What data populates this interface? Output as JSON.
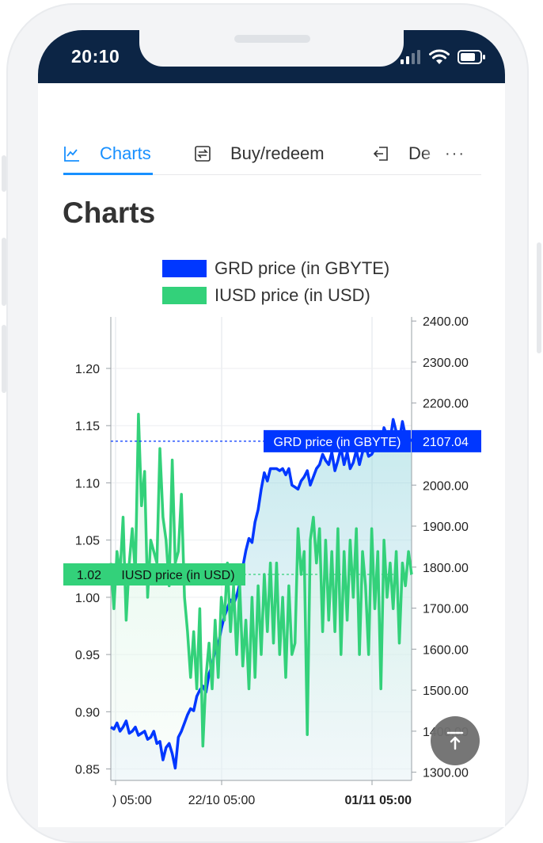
{
  "status_bar": {
    "time": "20:10"
  },
  "tabs": [
    {
      "label": "Charts",
      "active": true
    },
    {
      "label": "Buy/redeem",
      "active": false
    },
    {
      "label": "De",
      "active": false
    }
  ],
  "tabs_more": "···",
  "page_title": "Charts",
  "colors": {
    "grd": "#0037ff",
    "iusd": "#33d17a",
    "accent": "#1890ff",
    "statusbar": "#0c2545"
  },
  "chart_data": {
    "type": "line",
    "title": "",
    "series": [
      {
        "name": "GRD price (in GBYTE)",
        "axis": "right",
        "last_value_label": "2107.04",
        "values": [
          1410,
          1405,
          1420,
          1400,
          1410,
          1425,
          1395,
          1400,
          1410,
          1390,
          1395,
          1400,
          1380,
          1385,
          1400,
          1370,
          1375,
          1330,
          1360,
          1370,
          1345,
          1310,
          1385,
          1400,
          1420,
          1440,
          1455,
          1450,
          1485,
          1500,
          1510,
          1495,
          1540,
          1560,
          1600,
          1610,
          1650,
          1680,
          1700,
          1720,
          1710,
          1730,
          1760,
          1800,
          1840,
          1870,
          1860,
          1910,
          1940,
          1990,
          2030,
          2010,
          2040,
          2040,
          2040,
          2035,
          2040,
          2025,
          2040,
          2000,
          1995,
          1990,
          2010,
          2020,
          2035,
          2000,
          2020,
          2040,
          2050,
          2075,
          2060,
          2050,
          2080,
          2035,
          2060,
          2090,
          2050,
          2080,
          2040,
          2055,
          2085,
          2050,
          2080,
          2095,
          2070,
          2075,
          2090,
          2110,
          2095,
          2140,
          2120,
          2110,
          2160,
          2130,
          2110,
          2155,
          2120,
          2115,
          2107
        ]
      },
      {
        "name": "IUSD price (in USD)",
        "axis": "left",
        "last_value_label": "1.02",
        "values": [
          1.03,
          0.99,
          1.04,
          1.02,
          1.07,
          0.98,
          1.03,
          1.06,
          1.02,
          1.16,
          1.08,
          1.11,
          1.0,
          1.05,
          1.04,
          1.03,
          1.13,
          1.07,
          1.05,
          1.01,
          1.12,
          1.03,
          1.04,
          1.09,
          1.0,
          0.97,
          0.93,
          0.97,
          0.92,
          0.99,
          0.87,
          0.93,
          0.96,
          0.92,
          0.98,
          0.93,
          1.0,
          0.98,
          1.03,
          0.97,
          1.01,
          0.95,
          1.01,
          0.94,
          0.98,
          0.92,
          1.0,
          0.93,
          1.01,
          0.95,
          1.02,
          0.97,
          1.03,
          0.96,
          1.03,
          0.95,
          1.0,
          0.93,
          1.01,
          0.95,
          0.96,
          1.06,
          1.02,
          1.04,
          0.88,
          1.05,
          1.07,
          1.03,
          1.06,
          0.97,
          1.05,
          0.98,
          1.04,
          0.97,
          1.06,
          0.95,
          1.04,
          0.98,
          1.05,
          1.0,
          1.06,
          0.95,
          1.04,
          1.01,
          0.95,
          1.06,
          0.99,
          1.04,
          0.92,
          1.05,
          1.0,
          1.03,
          0.99,
          1.04,
          0.96,
          1.03,
          1.01,
          1.04,
          1.02
        ]
      }
    ],
    "left_axis": {
      "ticks": [
        "1.20",
        "1.15",
        "1.10",
        "1.05",
        "1.00",
        "0.95",
        "0.90",
        "0.85"
      ],
      "ylim": [
        0.84,
        1.245
      ]
    },
    "right_axis": {
      "ticks": [
        "2400.00",
        "2300.00",
        "2200.00",
        "2000.00",
        "1900.00",
        "1800.00",
        "1700.00",
        "1600.00",
        "1500.00",
        "1400.00",
        "1300.00"
      ],
      "ylim": [
        1280,
        2410
      ]
    },
    "x_ticks": [
      ") 05:00",
      "22/10 05:00",
      "01/11 05:00"
    ],
    "legend_position": "top-center"
  }
}
